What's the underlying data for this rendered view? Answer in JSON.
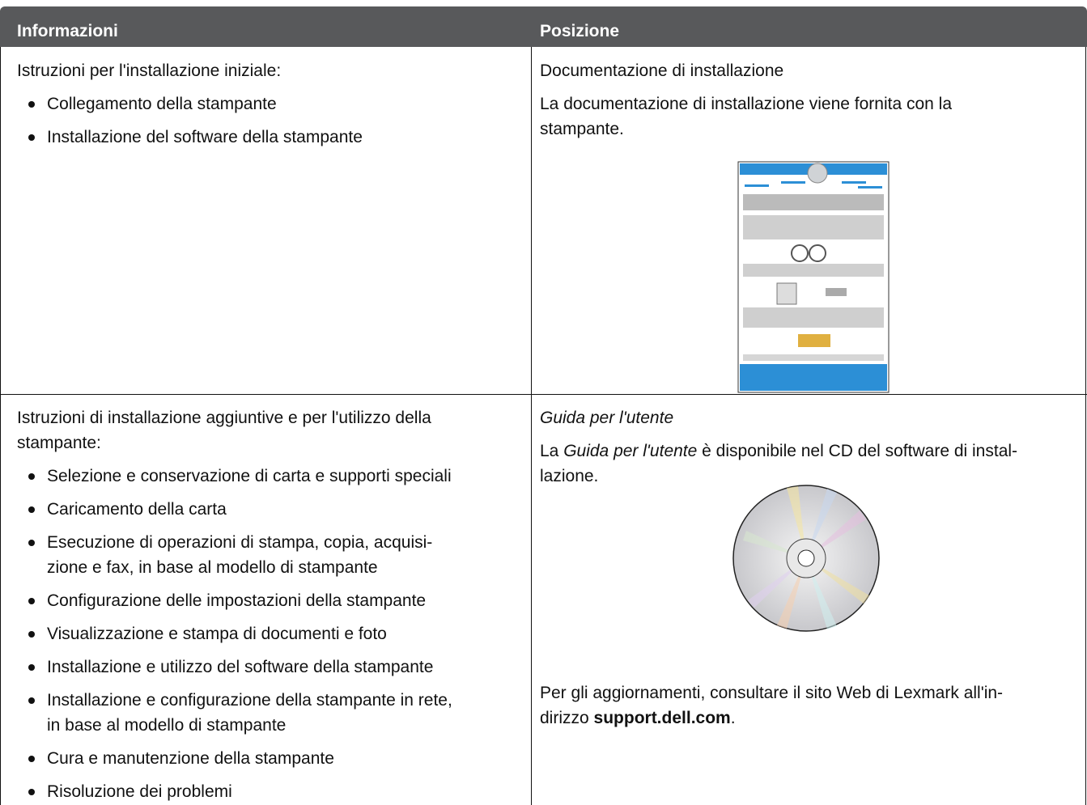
{
  "table": {
    "headers": [
      "Informazioni",
      "Posizione"
    ],
    "rows": [
      {
        "info": {
          "intro": [
            "Istruzioni per l'installazione iniziale:"
          ],
          "bullets": [
            [
              "Collegamento della stampante"
            ],
            [
              "Installazione del software della stampante"
            ]
          ]
        },
        "location": {
          "title": "Documentazione di installazione",
          "paragraphs": [
            [
              "La documentazione di installazione viene fornita con la",
              "stampante."
            ]
          ]
        }
      },
      {
        "info": {
          "intro": [
            "Istruzioni di installazione aggiuntive e per l'utilizzo della",
            "stampante:"
          ],
          "bullets": [
            [
              "Selezione e conservazione di carta e supporti speciali"
            ],
            [
              "Caricamento della carta"
            ],
            [
              "Esecuzione di operazioni di stampa, copia, acquisi-",
              "zione e fax, in base al modello di stampante"
            ],
            [
              "Configurazione delle impostazioni della stampante"
            ],
            [
              "Visualizzazione e stampa di documenti e foto"
            ],
            [
              "Installazione e utilizzo del software della stampante"
            ],
            [
              "Installazione e configurazione della stampante in rete,",
              "in base al modello di stampante"
            ],
            [
              "Cura e manutenzione della stampante"
            ],
            [
              "Risoluzione dei problemi"
            ]
          ]
        },
        "location": {
          "title": [
            {
              "text": "Guida per l'utente",
              "style": "italic"
            }
          ],
          "paragraphs": [
            [
              [
                {
                  "text": "La "
                },
                {
                  "text": "Guida per l'utente",
                  "style": "italic"
                },
                {
                  "text": " è disponibile nel CD del software di instal-"
                }
              ],
              "lazione."
            ]
          ],
          "update_note": [
            "Per gli aggiornamenti, consultare il sito Web di Lexmark all'in-",
            [
              {
                "text": "dirizzo "
              },
              {
                "text": "support.dell.com",
                "style": "bold"
              },
              {
                "text": "."
              }
            ]
          ]
        }
      }
    ]
  }
}
